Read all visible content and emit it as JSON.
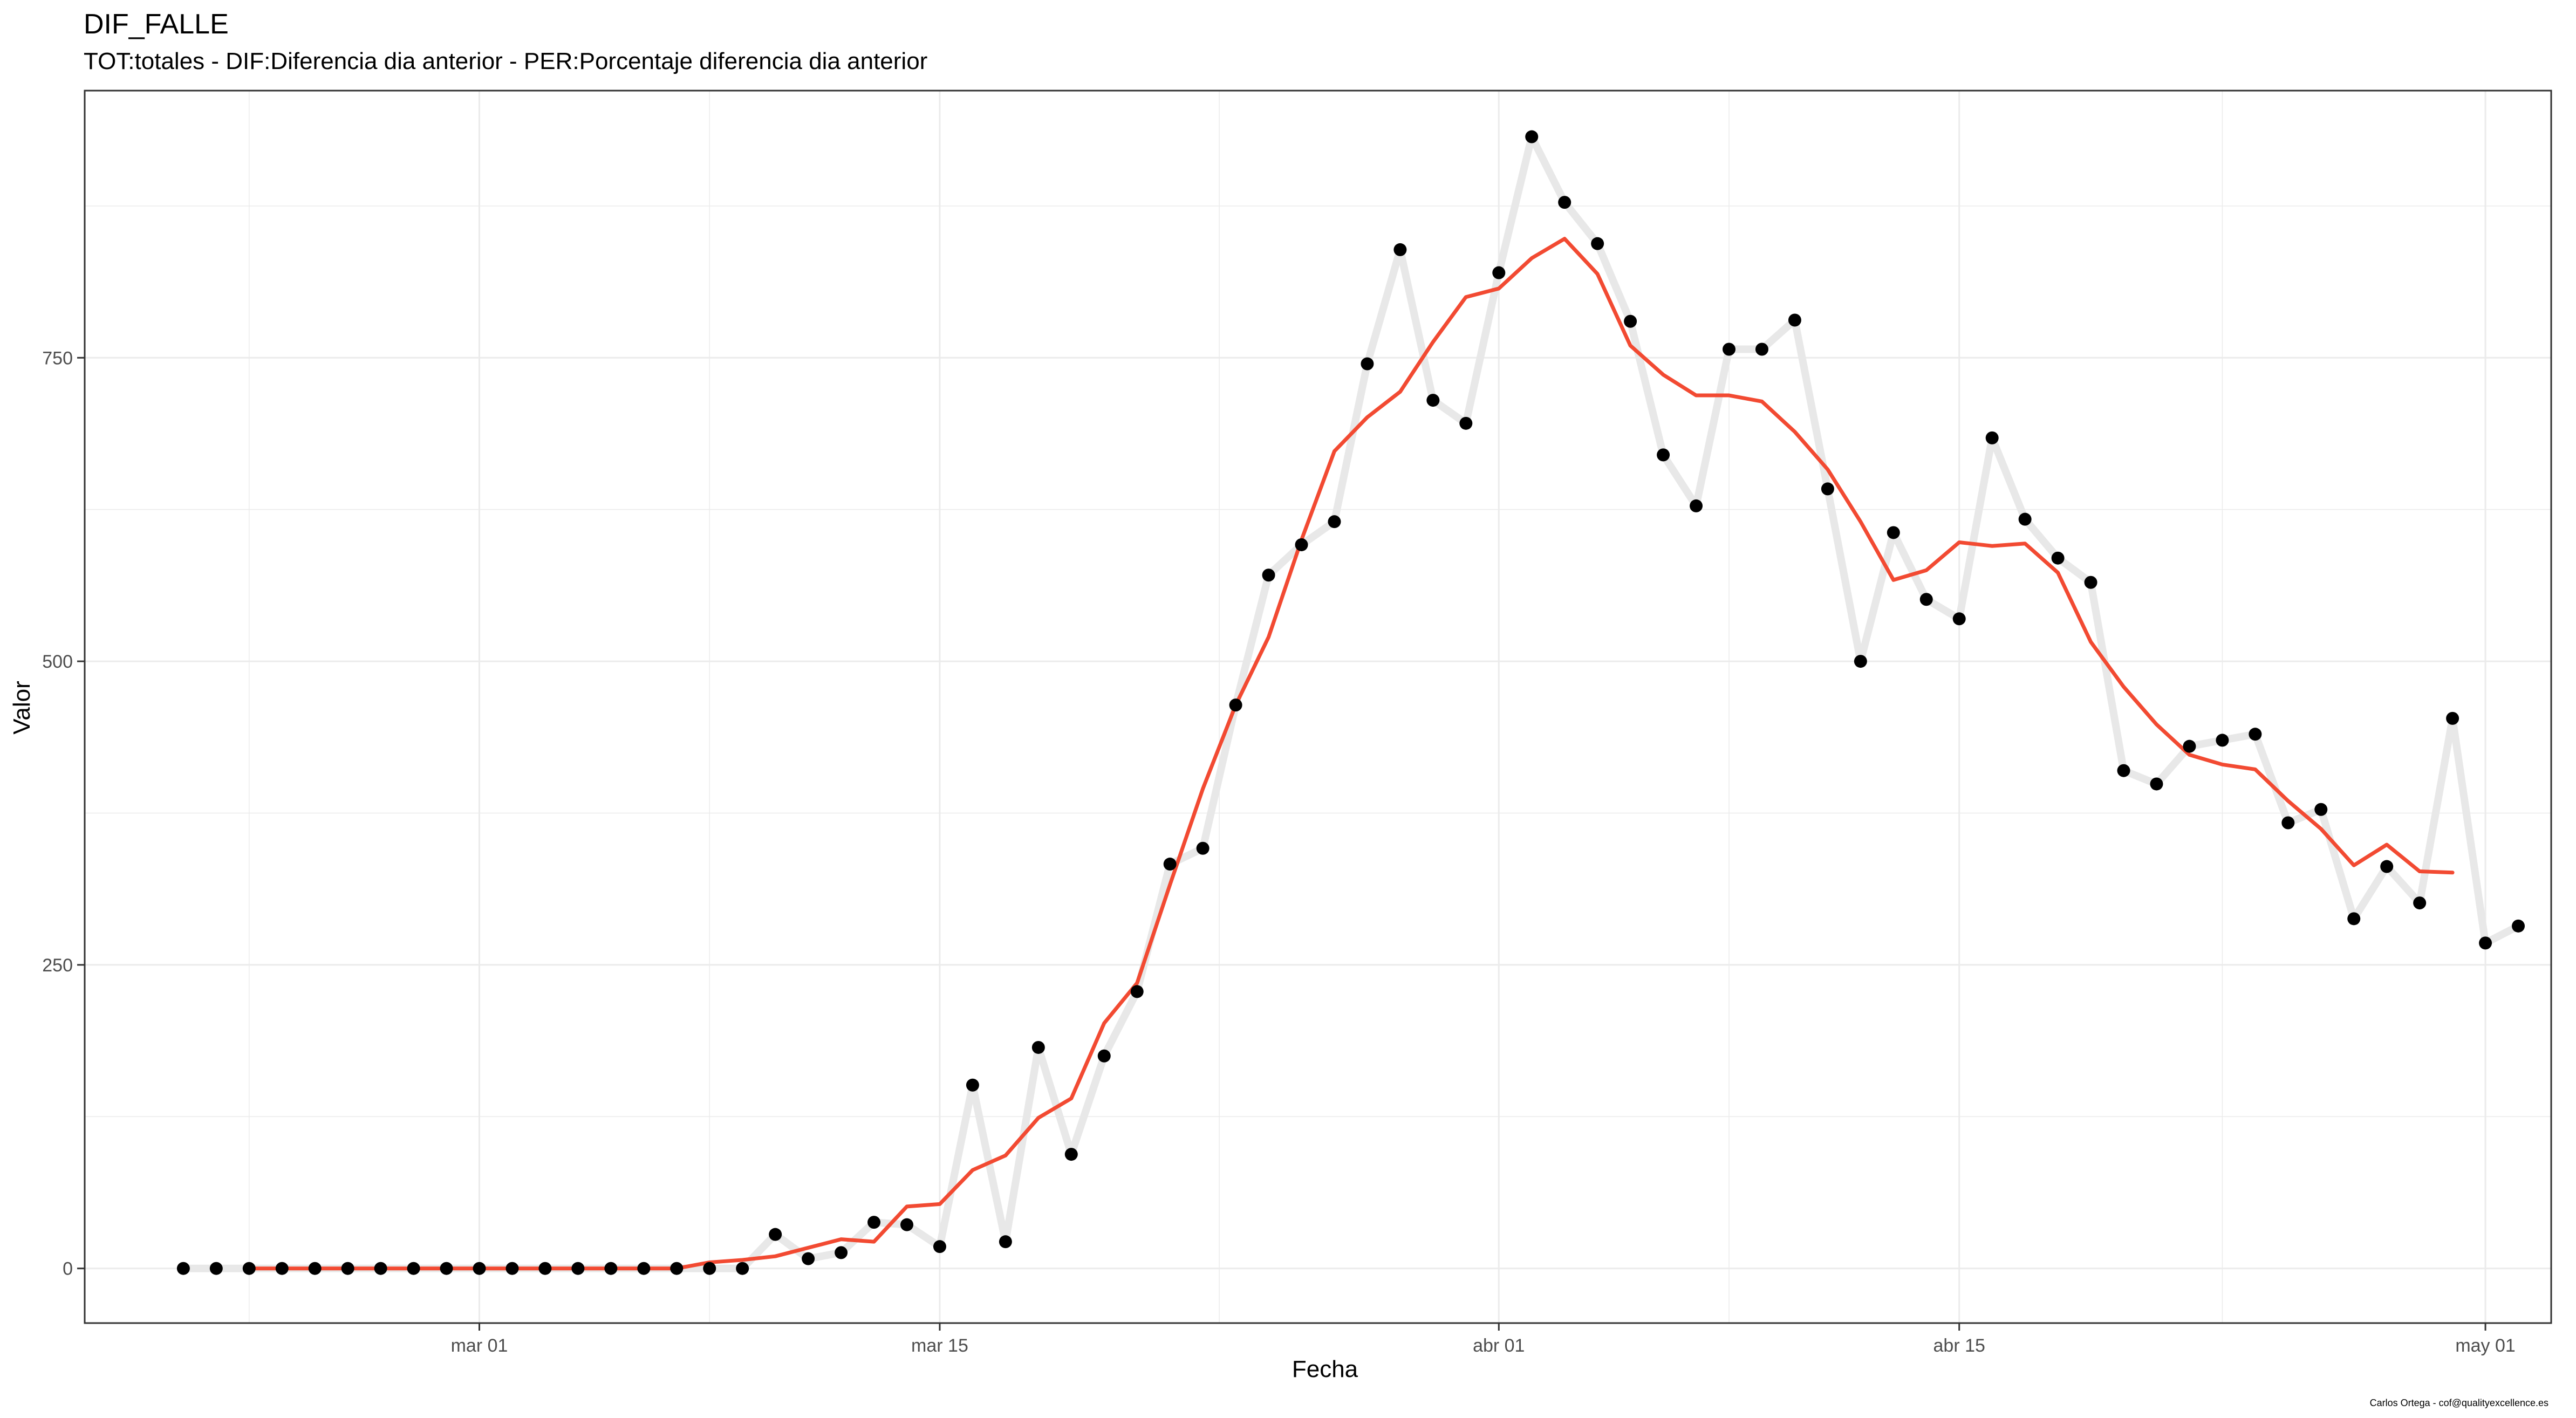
{
  "chart_data": {
    "type": "line",
    "title": "DIF_FALLE",
    "subtitle": "TOT:totales - DIF:Diferencia dia anterior - PER:Porcentaje diferencia dia anterior",
    "xlabel": "Fecha",
    "ylabel": "Valor",
    "caption": "Carlos Ortega - cof@qualityexcellence.es",
    "x_start": "2020-02-21",
    "x_ticks": [
      {
        "date": "2020-03-01",
        "label": "mar 01"
      },
      {
        "date": "2020-03-15",
        "label": "mar 15"
      },
      {
        "date": "2020-04-01",
        "label": "abr 01"
      },
      {
        "date": "2020-04-15",
        "label": "abr 15"
      },
      {
        "date": "2020-05-01",
        "label": "may 01"
      }
    ],
    "xlim": [
      "2020-02-18",
      "2020-05-03"
    ],
    "y_ticks": [
      0,
      250,
      500,
      750
    ],
    "ylim": [
      -45,
      970
    ],
    "grid": true,
    "legend": "none",
    "colors": {
      "points": "#000000",
      "raw_line": "#e8e8e8",
      "smooth_line": "#f24a32",
      "grid": "#ebebeb",
      "panel_border": "#333333"
    },
    "series": [
      {
        "values": [
          0,
          0,
          0,
          0,
          0,
          0,
          0,
          0,
          0,
          0,
          0,
          0,
          0,
          0,
          0,
          0,
          0,
          0,
          28,
          8,
          13,
          38,
          36,
          18,
          151,
          22,
          182,
          94,
          175,
          228,
          333,
          346,
          464,
          571,
          596,
          615,
          745,
          839,
          715,
          696,
          820,
          932,
          878,
          844,
          780,
          670,
          628,
          757,
          757,
          781,
          642,
          500,
          606,
          551,
          535,
          684,
          617,
          585,
          565,
          410,
          399,
          430,
          435,
          440,
          367,
          378,
          288,
          331,
          301,
          453,
          268,
          282
        ]
      },
      {
        "start_offset": 2,
        "values": [
          0,
          0,
          0,
          0,
          0,
          0,
          0,
          0,
          0,
          0,
          0,
          0,
          0,
          0,
          5,
          7,
          10,
          17,
          24,
          22,
          51,
          53,
          81,
          93,
          124,
          140,
          202,
          235,
          316,
          395,
          464,
          520,
          600,
          673,
          701,
          722,
          763,
          800,
          807,
          832,
          848,
          819,
          760,
          736,
          719,
          719,
          714,
          689,
          658,
          615,
          567,
          575,
          598,
          595,
          597,
          573,
          516,
          479,
          448,
          423,
          415,
          411,
          385,
          362,
          332,
          349,
          327,
          326
        ]
      }
    ]
  }
}
